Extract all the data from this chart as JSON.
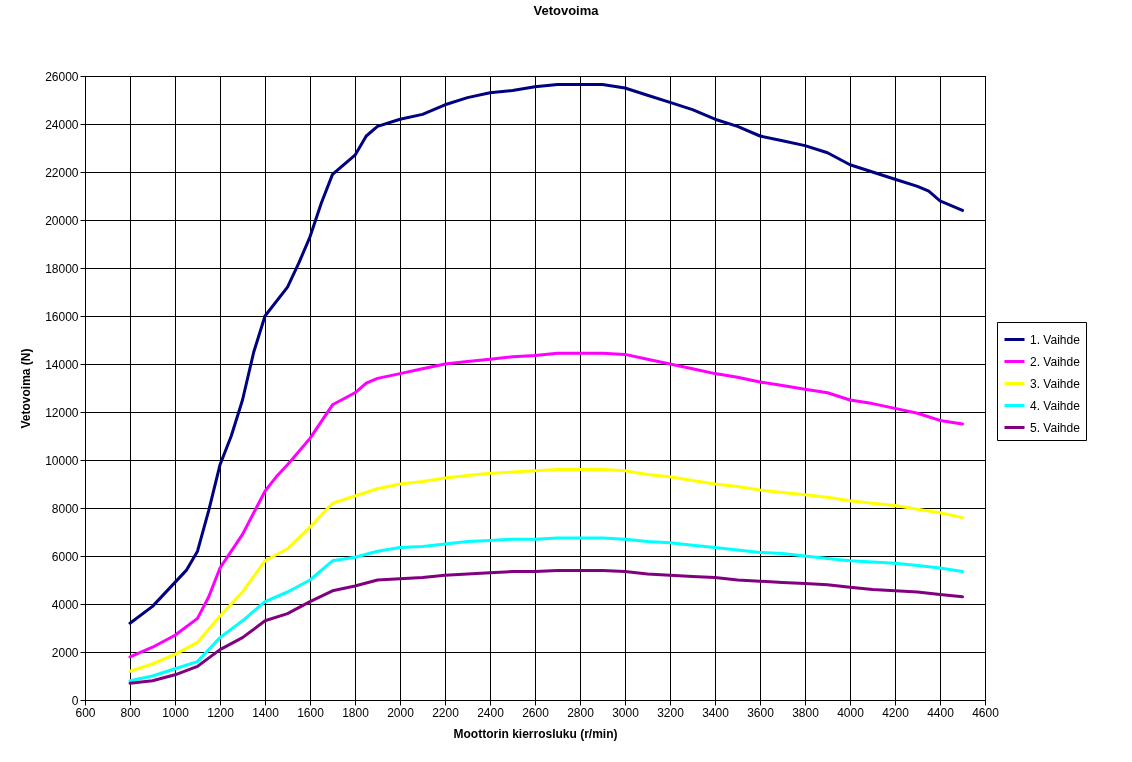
{
  "chart_data": {
    "type": "line",
    "title": "Vetovoima",
    "xlabel": "Moottorin kierrosluku (r/min)",
    "ylabel": "Vetovoima (N)",
    "x": [
      800,
      900,
      1000,
      1100,
      1200,
      1300,
      1400,
      1500,
      1600,
      1700,
      1800,
      1900,
      2000,
      2100,
      2200,
      2300,
      2400,
      2500,
      2600,
      2700,
      2800,
      2900,
      3000,
      3100,
      3200,
      3300,
      3400,
      3500,
      3600,
      3700,
      3800,
      3900,
      4000,
      4100,
      4200,
      4300,
      4400,
      4500
    ],
    "series": [
      {
        "name": "1. Vaihde",
        "color": "#000080",
        "x": [
          800,
          900,
          1000,
          1050,
          1100,
          1150,
          1200,
          1250,
          1300,
          1350,
          1400,
          1500,
          1550,
          1600,
          1650,
          1700,
          1800,
          1850,
          1900,
          2000,
          2100,
          2200,
          2300,
          2400,
          2500,
          2600,
          2700,
          2800,
          2900,
          3000,
          3100,
          3200,
          3300,
          3400,
          3500,
          3600,
          3700,
          3800,
          3900,
          4000,
          4100,
          4200,
          4300,
          4350,
          4400,
          4500
        ],
        "values": [
          3200,
          3900,
          4900,
          5400,
          6200,
          7900,
          9800,
          11000,
          12500,
          14500,
          16000,
          17200,
          18200,
          19300,
          20700,
          21900,
          22700,
          23500,
          23900,
          24200,
          24400,
          24800,
          25100,
          25300,
          25400,
          25550,
          25650,
          25650,
          25650,
          25500,
          25200,
          24900,
          24600,
          24200,
          23900,
          23500,
          23300,
          23100,
          22800,
          22300,
          22000,
          21700,
          21400,
          21200,
          20800,
          20400
        ]
      },
      {
        "name": "2. Vaihde",
        "color": "#ff00ff",
        "x": [
          800,
          900,
          1000,
          1100,
          1150,
          1200,
          1300,
          1400,
          1450,
          1500,
          1600,
          1700,
          1800,
          1850,
          1900,
          2000,
          2100,
          2200,
          2300,
          2400,
          2500,
          2600,
          2700,
          2800,
          2900,
          3000,
          3100,
          3200,
          3300,
          3400,
          3500,
          3600,
          3700,
          3800,
          3900,
          4000,
          4100,
          4200,
          4300,
          4400,
          4500
        ],
        "values": [
          1800,
          2200,
          2700,
          3400,
          4300,
          5500,
          6900,
          8700,
          9300,
          9800,
          10900,
          12300,
          12800,
          13200,
          13400,
          13600,
          13800,
          14000,
          14100,
          14200,
          14300,
          14350,
          14450,
          14450,
          14450,
          14400,
          14200,
          14000,
          13800,
          13600,
          13450,
          13250,
          13100,
          12950,
          12800,
          12500,
          12350,
          12150,
          11950,
          11650,
          11500
        ]
      },
      {
        "name": "3. Vaihde",
        "color": "#ffff00",
        "values": [
          1200,
          1500,
          1900,
          2400,
          3500,
          4500,
          5800,
          6300,
          7200,
          8200,
          8500,
          8800,
          9000,
          9100,
          9250,
          9350,
          9450,
          9500,
          9550,
          9600,
          9600,
          9600,
          9550,
          9400,
          9300,
          9150,
          9000,
          8900,
          8750,
          8650,
          8550,
          8450,
          8300,
          8200,
          8100,
          7950,
          7800,
          7600
        ]
      },
      {
        "name": "4. Vaihde",
        "color": "#00ffff",
        "values": [
          800,
          1000,
          1300,
          1600,
          2600,
          3300,
          4100,
          4500,
          5000,
          5800,
          5950,
          6200,
          6350,
          6400,
          6500,
          6600,
          6650,
          6700,
          6700,
          6750,
          6750,
          6750,
          6700,
          6600,
          6550,
          6450,
          6350,
          6250,
          6150,
          6100,
          6000,
          5900,
          5800,
          5750,
          5700,
          5600,
          5500,
          5350
        ]
      },
      {
        "name": "5. Vaihde",
        "color": "#800080",
        "values": [
          700,
          800,
          1050,
          1400,
          2100,
          2600,
          3300,
          3600,
          4100,
          4550,
          4750,
          5000,
          5050,
          5100,
          5200,
          5250,
          5300,
          5350,
          5350,
          5400,
          5400,
          5400,
          5350,
          5250,
          5200,
          5150,
          5100,
          5000,
          4950,
          4900,
          4850,
          4800,
          4700,
          4600,
          4550,
          4500,
          4400,
          4300
        ]
      }
    ],
    "xlim": [
      600,
      4600
    ],
    "xticks": [
      600,
      800,
      1000,
      1200,
      1400,
      1600,
      1800,
      2000,
      2200,
      2400,
      2600,
      2800,
      3000,
      3200,
      3400,
      3600,
      3800,
      4000,
      4200,
      4400,
      4600
    ],
    "ylim": [
      0,
      26000
    ],
    "yticks": [
      0,
      2000,
      4000,
      6000,
      8000,
      10000,
      12000,
      14000,
      16000,
      18000,
      20000,
      22000,
      24000,
      26000
    ],
    "grid": true,
    "legend": "right",
    "marker": "none",
    "line_style": "solid"
  }
}
